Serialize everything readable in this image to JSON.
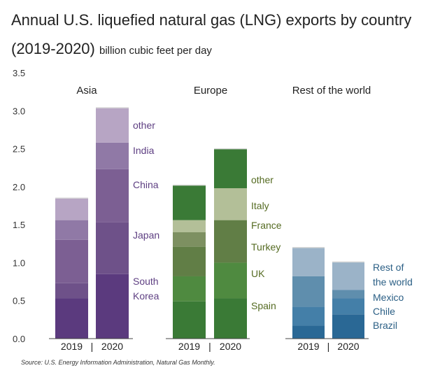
{
  "title": "Annual U.S. liquefied natural gas (LNG) exports by country (2019-2020)",
  "subtitle": "billion cubic feet per day",
  "source": "Source: U.S. Energy Information Administration, Natural Gas Monthly.",
  "chart_data": {
    "type": "bar",
    "stacked": true,
    "ylim": [
      0,
      3.5
    ],
    "yticks": [
      "0.0",
      "0.5",
      "1.0",
      "1.5",
      "2.0",
      "2.5",
      "3.0",
      "3.5"
    ],
    "grid": false,
    "x_separator": "|",
    "panels": [
      {
        "name": "Asia",
        "categories": [
          "2019",
          "2020"
        ],
        "colors": [
          "#5b3a7e",
          "#6e5189",
          "#7c5f93",
          "#9079a6",
          "#b7a5c4"
        ],
        "label_color": "#5e3f82",
        "series": [
          {
            "name": "South Korea",
            "values": [
              0.53,
              0.85
            ]
          },
          {
            "name": "Japan",
            "values": [
              0.2,
              0.68
            ]
          },
          {
            "name": "China",
            "values": [
              0.57,
              0.7
            ]
          },
          {
            "name": "India",
            "values": [
              0.26,
              0.35
            ]
          },
          {
            "name": "other",
            "values": [
              0.29,
              0.46
            ]
          }
        ],
        "labels": [
          "other",
          "India",
          "China",
          "Japan",
          "South Korea"
        ]
      },
      {
        "name": "Europe",
        "categories": [
          "2019",
          "2020"
        ],
        "colors": [
          "#3a7a36",
          "#4f8a40",
          "#617e46",
          "#7d9061",
          "#b3bf98"
        ],
        "label_color": "#556b22",
        "series": [
          {
            "name": "Spain",
            "values": [
              0.49,
              0.53
            ]
          },
          {
            "name": "UK",
            "values": [
              0.33,
              0.47
            ]
          },
          {
            "name": "Turkey",
            "values": [
              0.39,
              0.56
            ]
          },
          {
            "name": "France",
            "values": [
              0.19,
              0.0
            ]
          },
          {
            "name": "Italy",
            "values": [
              0.16,
              0.42
            ]
          },
          {
            "name": "other",
            "values": [
              0.46,
              0.52
            ]
          }
        ],
        "labels": [
          "other",
          "Italy",
          "France",
          "Turkey",
          "UK",
          "Spain"
        ]
      },
      {
        "name": "Rest of the world",
        "categories": [
          "2019",
          "2020"
        ],
        "colors": [
          "#2a6895",
          "#447fa8",
          "#5f8ead",
          "#9bb3c8"
        ],
        "label_color": "#2b5f85",
        "series": [
          {
            "name": "Brazil",
            "values": [
              0.17,
              0.32
            ]
          },
          {
            "name": "Chile",
            "values": [
              0.25,
              0.21
            ]
          },
          {
            "name": "Mexico",
            "values": [
              0.4,
              0.11
            ]
          },
          {
            "name": "Rest of the world",
            "values": [
              0.38,
              0.37
            ]
          }
        ],
        "labels": [
          "Rest of the world",
          "Mexico",
          "Chile",
          "Brazil"
        ]
      }
    ]
  }
}
